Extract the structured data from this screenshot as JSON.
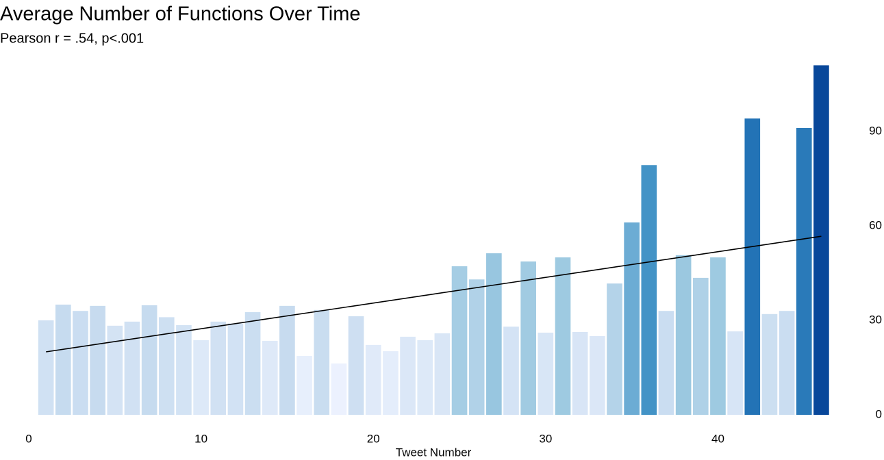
{
  "chart_data": {
    "type": "bar",
    "title": "Average Number of Functions Over Time",
    "subtitle": "Pearson r = .54, p<.001",
    "x_label": "Tweet Number",
    "x": [
      1,
      2,
      3,
      4,
      5,
      6,
      7,
      8,
      9,
      10,
      11,
      12,
      13,
      14,
      15,
      16,
      17,
      18,
      19,
      20,
      21,
      22,
      23,
      24,
      25,
      26,
      27,
      28,
      29,
      30,
      31,
      32,
      33,
      34,
      35,
      36,
      37,
      38,
      39,
      40,
      41,
      42,
      43,
      44,
      45,
      46
    ],
    "values": [
      30,
      35,
      33,
      34.6,
      28.3,
      29.6,
      34.8,
      31,
      28.5,
      23.7,
      29.6,
      29,
      32.6,
      23.5,
      34.6,
      18.7,
      33.3,
      16.3,
      31.3,
      22.2,
      20.2,
      24.8,
      23.7,
      25.9,
      47.2,
      43,
      51.3,
      28,
      48.7,
      26.1,
      50,
      26.3,
      25,
      41.7,
      61.1,
      79.3,
      33,
      50.7,
      43.5,
      50,
      26.5,
      94.1,
      32,
      33,
      91.1,
      111
    ],
    "color_scale": [
      [
        15,
        "#eff3ff"
      ],
      [
        35,
        "#c6dbef"
      ],
      [
        50,
        "#9ecae1"
      ],
      [
        65,
        "#5ba1d0"
      ],
      [
        80,
        "#4292c6"
      ],
      [
        95,
        "#2171b5"
      ],
      [
        111,
        "#08479a"
      ]
    ],
    "trendline": {
      "x": [
        1,
        46
      ],
      "values": [
        20,
        56.7
      ],
      "color": "#000000"
    },
    "xlim": [
      0,
      46.5
    ],
    "xticks": [
      0,
      10,
      20,
      30,
      40
    ],
    "ylim": [
      0,
      111
    ],
    "yticks": [
      0,
      30,
      60,
      90
    ],
    "y_axis_side": "right",
    "grid": false
  }
}
